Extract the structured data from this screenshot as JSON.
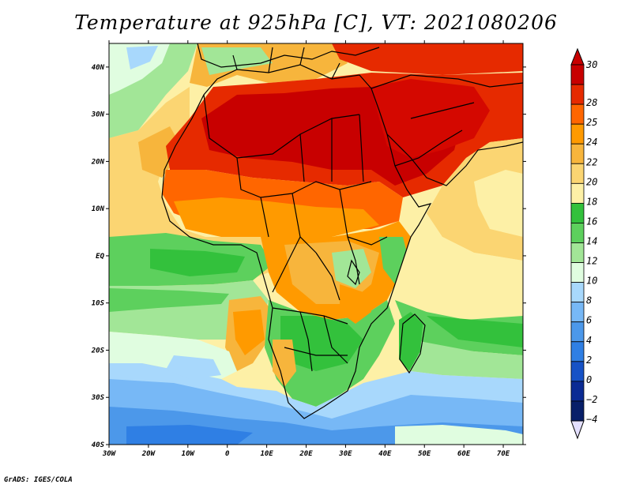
{
  "title": "Temperature at 925hPa [C], VT: 2021080206",
  "credit": "GrADS: IGES/COLA",
  "map": {
    "lon_range": [
      -30,
      75
    ],
    "lat_range": [
      -40,
      45
    ],
    "lat_labels": [
      {
        "lat": 40,
        "label": "40N"
      },
      {
        "lat": 30,
        "label": "30N"
      },
      {
        "lat": 20,
        "label": "20N"
      },
      {
        "lat": 10,
        "label": "10N"
      },
      {
        "lat": 0,
        "label": "EQ"
      },
      {
        "lat": -10,
        "label": "10S"
      },
      {
        "lat": -20,
        "label": "20S"
      },
      {
        "lat": -30,
        "label": "30S"
      },
      {
        "lat": -40,
        "label": "40S"
      }
    ],
    "lon_labels": [
      {
        "lon": -30,
        "label": "30W"
      },
      {
        "lon": -20,
        "label": "20W"
      },
      {
        "lon": -10,
        "label": "10W"
      },
      {
        "lon": 0,
        "label": "0"
      },
      {
        "lon": 10,
        "label": "10E"
      },
      {
        "lon": 20,
        "label": "20E"
      },
      {
        "lon": 30,
        "label": "30E"
      },
      {
        "lon": 40,
        "label": "40E"
      },
      {
        "lon": 50,
        "label": "50E"
      },
      {
        "lon": 60,
        "label": "60E"
      },
      {
        "lon": 70,
        "label": "70E"
      }
    ]
  },
  "colorbar": {
    "labels": [
      "30",
      "28",
      "25",
      "24",
      "22",
      "20",
      "18",
      "16",
      "14",
      "12",
      "10",
      "8",
      "6",
      "4",
      "2",
      "0",
      "−2",
      "−4"
    ],
    "colors": [
      "#c80000",
      "#e62a00",
      "#ff6600",
      "#ff9a00",
      "#f7b53c",
      "#fbd572",
      "#fdf0a6",
      "#33c13c",
      "#5dd05d",
      "#a2e697",
      "#e0fde0",
      "#a8d8fc",
      "#77b8f6",
      "#4c98ea",
      "#2f7fe4",
      "#1652c6",
      "#0b2b94",
      "#081f69"
    ],
    "top_color": "#c80000",
    "bottom_color": "#e4e0ff"
  }
}
